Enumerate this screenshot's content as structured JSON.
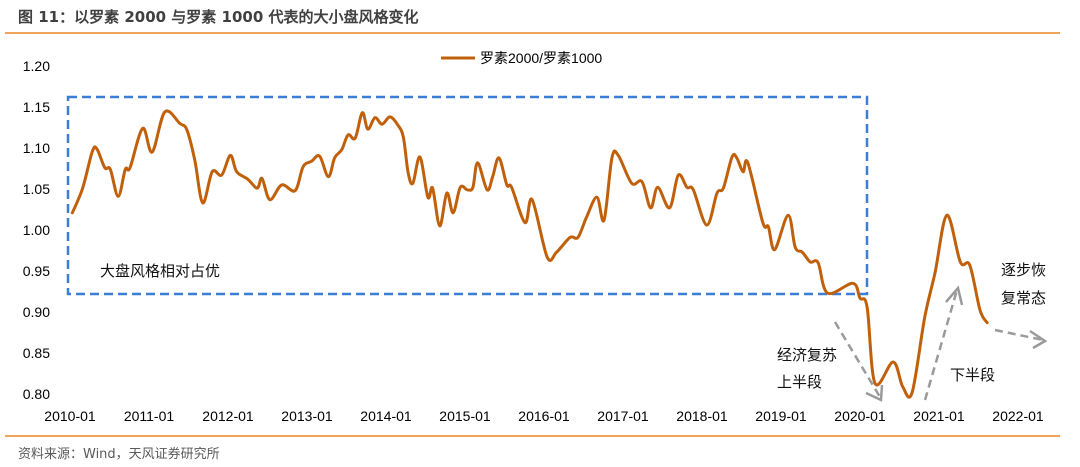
{
  "title": "图 11：以罗素 2000 与罗素 1000 代表的大小盘风格变化",
  "source": "资料来源：Wind，天风证券研究所",
  "colors": {
    "line": "#c0600a",
    "box": "#3a7fd5",
    "arrow": "#9a9a9a",
    "rule": "#f0a35a"
  },
  "chart_data": {
    "type": "line",
    "title": "图 11：以罗素 2000 与罗素 1000 代表的大小盘风格变化",
    "xlabel": "",
    "ylabel": "",
    "ylim": [
      0.8,
      1.2
    ],
    "xlim": [
      2010.0,
      2022.0
    ],
    "grid": false,
    "legend_placement": "top-center",
    "y_ticks": [
      "0.80",
      "0.85",
      "0.90",
      "0.95",
      "1.00",
      "1.05",
      "1.10",
      "1.15",
      "1.20"
    ],
    "x_ticks": [
      "2010-01",
      "2011-01",
      "2012-01",
      "2013-01",
      "2014-01",
      "2015-01",
      "2016-01",
      "2017-01",
      "2018-01",
      "2019-01",
      "2020-01",
      "2021-01",
      "2022-01"
    ],
    "series": [
      {
        "name": "罗素2000/罗素1000",
        "points": [
          [
            2010.03,
            1.021
          ],
          [
            2010.16,
            1.051
          ],
          [
            2010.28,
            1.095
          ],
          [
            2010.34,
            1.099
          ],
          [
            2010.44,
            1.076
          ],
          [
            2010.51,
            1.074
          ],
          [
            2010.61,
            1.041
          ],
          [
            2010.7,
            1.074
          ],
          [
            2010.76,
            1.076
          ],
          [
            2010.92,
            1.124
          ],
          [
            2011.04,
            1.095
          ],
          [
            2011.2,
            1.144
          ],
          [
            2011.39,
            1.13
          ],
          [
            2011.48,
            1.122
          ],
          [
            2011.58,
            1.085
          ],
          [
            2011.68,
            1.033
          ],
          [
            2011.8,
            1.071
          ],
          [
            2011.92,
            1.067
          ],
          [
            2012.03,
            1.091
          ],
          [
            2012.11,
            1.071
          ],
          [
            2012.25,
            1.062
          ],
          [
            2012.37,
            1.051
          ],
          [
            2012.43,
            1.063
          ],
          [
            2012.53,
            1.037
          ],
          [
            2012.68,
            1.055
          ],
          [
            2012.85,
            1.048
          ],
          [
            2012.95,
            1.077
          ],
          [
            2013.06,
            1.084
          ],
          [
            2013.16,
            1.09
          ],
          [
            2013.27,
            1.065
          ],
          [
            2013.35,
            1.088
          ],
          [
            2013.44,
            1.098
          ],
          [
            2013.52,
            1.116
          ],
          [
            2013.61,
            1.112
          ],
          [
            2013.7,
            1.143
          ],
          [
            2013.77,
            1.123
          ],
          [
            2013.86,
            1.137
          ],
          [
            2013.95,
            1.129
          ],
          [
            2014.05,
            1.138
          ],
          [
            2014.15,
            1.128
          ],
          [
            2014.22,
            1.113
          ],
          [
            2014.28,
            1.07
          ],
          [
            2014.34,
            1.057
          ],
          [
            2014.43,
            1.089
          ],
          [
            2014.53,
            1.04
          ],
          [
            2014.59,
            1.051
          ],
          [
            2014.68,
            1.005
          ],
          [
            2014.77,
            1.045
          ],
          [
            2014.85,
            1.021
          ],
          [
            2014.94,
            1.052
          ],
          [
            2015.03,
            1.049
          ],
          [
            2015.1,
            1.052
          ],
          [
            2015.16,
            1.082
          ],
          [
            2015.28,
            1.049
          ],
          [
            2015.35,
            1.065
          ],
          [
            2015.43,
            1.088
          ],
          [
            2015.53,
            1.055
          ],
          [
            2015.59,
            1.052
          ],
          [
            2015.76,
            1.009
          ],
          [
            2015.85,
            1.037
          ],
          [
            2016.04,
            0.967
          ],
          [
            2016.16,
            0.973
          ],
          [
            2016.33,
            0.991
          ],
          [
            2016.43,
            0.991
          ],
          [
            2016.54,
            1.016
          ],
          [
            2016.67,
            1.04
          ],
          [
            2016.76,
            1.012
          ],
          [
            2016.86,
            1.088
          ],
          [
            2016.94,
            1.091
          ],
          [
            2017.11,
            1.057
          ],
          [
            2017.24,
            1.059
          ],
          [
            2017.35,
            1.027
          ],
          [
            2017.44,
            1.052
          ],
          [
            2017.59,
            1.027
          ],
          [
            2017.7,
            1.067
          ],
          [
            2017.81,
            1.052
          ],
          [
            2017.89,
            1.049
          ],
          [
            2018.06,
            1.006
          ],
          [
            2018.19,
            1.045
          ],
          [
            2018.27,
            1.051
          ],
          [
            2018.38,
            1.089
          ],
          [
            2018.44,
            1.088
          ],
          [
            2018.52,
            1.071
          ],
          [
            2018.58,
            1.082
          ],
          [
            2018.77,
            1.009
          ],
          [
            2018.84,
            1.004
          ],
          [
            2018.92,
            0.976
          ],
          [
            2019.09,
            1.018
          ],
          [
            2019.18,
            0.979
          ],
          [
            2019.27,
            0.973
          ],
          [
            2019.37,
            0.961
          ],
          [
            2019.47,
            0.96
          ],
          [
            2019.59,
            0.923
          ],
          [
            2019.91,
            0.935
          ],
          [
            2020.0,
            0.917
          ],
          [
            2020.09,
            0.906
          ],
          [
            2020.19,
            0.813
          ],
          [
            2020.42,
            0.839
          ],
          [
            2020.54,
            0.809
          ],
          [
            2020.66,
            0.802
          ],
          [
            2020.82,
            0.894
          ],
          [
            2020.95,
            0.948
          ],
          [
            2021.1,
            1.018
          ],
          [
            2021.27,
            0.961
          ],
          [
            2021.39,
            0.957
          ],
          [
            2021.52,
            0.902
          ],
          [
            2021.61,
            0.887
          ]
        ]
      }
    ],
    "annotations": {
      "box_label": "大盘风格相对占优",
      "phase1_line1": "经济复苏",
      "phase1_line2": "上半段",
      "phase2": "下半段",
      "phase3_line1": "逐步恢",
      "phase3_line2": "复常态"
    }
  }
}
